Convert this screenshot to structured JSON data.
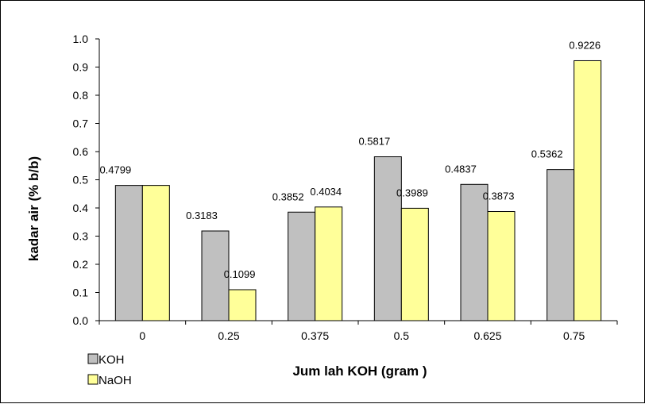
{
  "chart_data": {
    "type": "bar",
    "categories": [
      "0",
      "0.25",
      "0.375",
      "0.5",
      "0.625",
      "0.75"
    ],
    "series": [
      {
        "name": "KOH",
        "color": "#c0c0c0",
        "values": [
          0.4799,
          0.3183,
          0.3852,
          0.5817,
          0.4837,
          0.5362
        ]
      },
      {
        "name": "NaOH",
        "color": "#ffff99",
        "values": [
          0.4799,
          0.1099,
          0.4034,
          0.3989,
          0.3873,
          0.9226
        ]
      }
    ],
    "data_labels": [
      {
        "series": 0,
        "index": 0,
        "text": "0.4799"
      },
      {
        "series": 0,
        "index": 1,
        "text": "0.3183"
      },
      {
        "series": 1,
        "index": 1,
        "text": "0.1099"
      },
      {
        "series": 0,
        "index": 2,
        "text": "0.3852"
      },
      {
        "series": 1,
        "index": 2,
        "text": "0.4034"
      },
      {
        "series": 0,
        "index": 3,
        "text": "0.5817"
      },
      {
        "series": 1,
        "index": 3,
        "text": "0.3989"
      },
      {
        "series": 0,
        "index": 4,
        "text": "0.4837"
      },
      {
        "series": 1,
        "index": 4,
        "text": "0.3873"
      },
      {
        "series": 0,
        "index": 5,
        "text": "0.5362"
      },
      {
        "series": 1,
        "index": 5,
        "text": "0.9226"
      }
    ],
    "y_ticks": [
      "0.0",
      "0.1",
      "0.2",
      "0.3",
      "0.4",
      "0.5",
      "0.6",
      "0.7",
      "0.8",
      "0.9",
      "1.0"
    ],
    "ylim": [
      0,
      1.0
    ],
    "xlabel": "Jum lah KOH (gram )",
    "ylabel": "kadar air (% b/b)",
    "grid": false,
    "legend_position": "bottom-left"
  }
}
